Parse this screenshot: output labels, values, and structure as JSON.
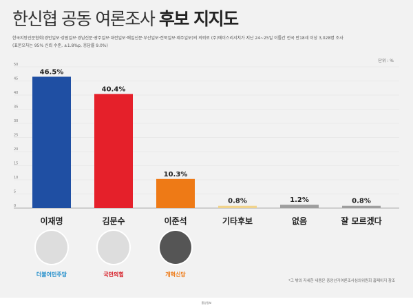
{
  "title_normal": "한신협 공동 여론조사",
  "title_bold": "후보 지지도",
  "subtitle_1": "한국지방신문협회(경인일보·강원일보·경남신문·광주일보·대전일보·매일신문·부산일보·전북일보·제주일보)의 의뢰로 (주)에이스리서치가 지난 24~25일 이틀간 전국 만18세 이상 3,028명 조사",
  "subtitle_2": "(표본오차는 95% 신뢰 수준, ±1.8%p, 응답률 9.0%)",
  "unit": "단위 : %",
  "parties": [
    "더불어민주당",
    "국민의힘",
    "개혁신당"
  ],
  "note": "*그 밖의 자세한 내용은 중앙선거여론조사심의위원회 홈페이지 참조",
  "footer": "중앙일보",
  "chart_data": {
    "type": "bar",
    "title": "한신협 공동 여론조사 후보 지지도",
    "categories": [
      "이재명",
      "김문수",
      "이준석",
      "기타후보",
      "없음",
      "잘 모르겠다"
    ],
    "values": [
      46.5,
      40.4,
      10.3,
      0.8,
      1.2,
      0.8
    ],
    "labels": [
      "46.5%",
      "40.4%",
      "10.3%",
      "0.8%",
      "1.2%",
      "0.8%"
    ],
    "colors": [
      "#1f4fa3",
      "#e5202a",
      "#ee7a16",
      "#f0d38c",
      "#9e9e9e",
      "#9e9e9e"
    ],
    "ylim": [
      0,
      50
    ],
    "yticks": [
      "0",
      "5",
      "10",
      "15",
      "20",
      "25",
      "30",
      "35",
      "40",
      "45",
      "50"
    ],
    "grid": true
  }
}
